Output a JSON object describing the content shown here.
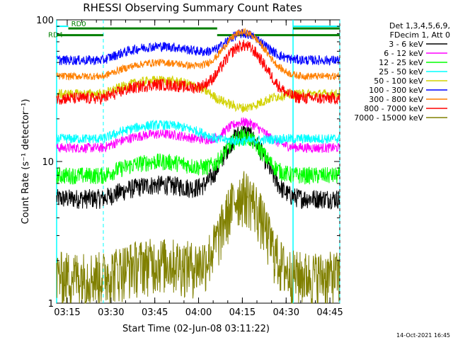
{
  "chart_data": {
    "type": "line",
    "title": "RHESSI Observing Summary Count Rates",
    "xlabel": "Start Time (02-Jun-08 03:11:22)",
    "ylabel": "Count Rate (s⁻¹ detector⁻¹)",
    "yscale": "log",
    "ylim": [
      1,
      100
    ],
    "xlim_minutes": [
      0,
      97
    ],
    "y_ticks": [
      {
        "value": 1,
        "label": "1"
      },
      {
        "value": 10,
        "label": "10"
      },
      {
        "value": 100,
        "label": "100"
      }
    ],
    "x_ticks": [
      {
        "minute": 3.63,
        "label": "03:15"
      },
      {
        "minute": 18.63,
        "label": "03:30"
      },
      {
        "minute": 33.63,
        "label": "03:45"
      },
      {
        "minute": 48.63,
        "label": "04:00"
      },
      {
        "minute": 63.63,
        "label": "04:15"
      },
      {
        "minute": 78.63,
        "label": "04:30"
      },
      {
        "minute": 93.63,
        "label": "04:45"
      }
    ],
    "legend_header": [
      "Det 1,3,4,5,6,9,",
      "FDecim 1, Att 0"
    ],
    "legend_position": "right",
    "footer_date": "14-Oct-2021 16:45",
    "markers": {
      "radiation_belt": {
        "label": "RD4",
        "color": "#007f00",
        "value": 78,
        "ranges": [
          [
            0,
            16
          ],
          [
            55,
            97
          ]
        ]
      },
      "saa": {
        "label": "RD0",
        "color": "#007f00",
        "value": 87,
        "ranges": [
          [
            4,
            55
          ],
          [
            81,
            97
          ]
        ]
      },
      "cyan_vertical_lines": [
        0,
        81
      ],
      "dashed_vertical_lines": [
        16,
        97
      ]
    },
    "series": [
      {
        "name": "3 - 6 keV",
        "color": "#000000",
        "base": 5.5,
        "peak": 16,
        "peak_center": 64,
        "peak_width": 8.5,
        "noise": 0.08,
        "gap": [
          0,
          0
        ]
      },
      {
        "name": "6 - 12 keV",
        "color": "#ff00ff",
        "base": 12.5,
        "peak": 19,
        "peak_center": 64,
        "peak_width": 9,
        "noise": 0.04,
        "gap": [
          0,
          0
        ]
      },
      {
        "name": "12 - 25 keV",
        "color": "#00ff00",
        "base": 8,
        "peak": 15,
        "peak_center": 64,
        "peak_width": 8,
        "noise": 0.07,
        "gap": [
          0,
          0
        ]
      },
      {
        "name": "25 - 50 keV",
        "color": "#00ffff",
        "base": 14.5,
        "peak": 14,
        "peak_center": 64,
        "peak_width": 8,
        "noise": 0.04,
        "gap": [
          0,
          0
        ]
      },
      {
        "name": "50 - 100 keV",
        "color": "#d2d200",
        "base": 30,
        "peak": 24,
        "peak_center": 64,
        "peak_width": 9,
        "noise": 0.04,
        "gap": [
          0,
          0
        ]
      },
      {
        "name": "100 - 300 keV",
        "color": "#0000ff",
        "base": 52,
        "peak": 80,
        "peak_center": 64,
        "peak_width": 9,
        "noise": 0.04,
        "gap": [
          55,
          80
        ]
      },
      {
        "name": "300 - 800 keV",
        "color": "#ff8000",
        "base": 40,
        "peak": 82,
        "peak_center": 64,
        "peak_width": 9,
        "noise": 0.03,
        "gap": [
          55,
          80
        ]
      },
      {
        "name": "800 - 7000 keV",
        "color": "#ff0000",
        "base": 28,
        "peak": 66,
        "peak_center": 64,
        "peak_width": 9,
        "noise": 0.05,
        "gap": [
          55,
          80
        ]
      },
      {
        "name": "7000 - 15000 keV",
        "color": "#808000",
        "base": 1.6,
        "peak": 6,
        "peak_center": 64,
        "peak_width": 8,
        "noise": 0.22,
        "gap": [
          0,
          0
        ]
      }
    ]
  }
}
